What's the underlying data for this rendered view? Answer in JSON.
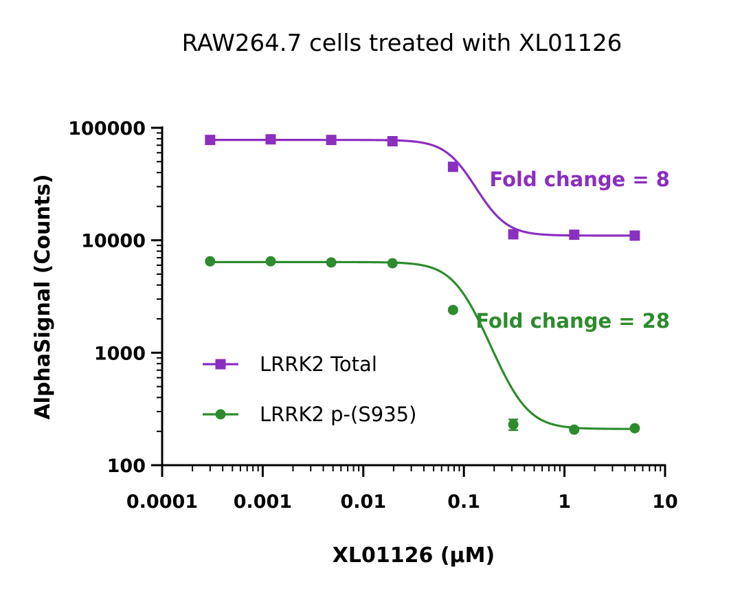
{
  "chart_data": {
    "type": "scatter",
    "title": "RAW264.7 cells treated with XL01126",
    "xlabel": "XL01126 (µM)",
    "ylabel": "AlphaSignal (Counts)",
    "xscale": "log",
    "yscale": "log",
    "xlim": [
      0.0001,
      10
    ],
    "ylim": [
      100,
      100000
    ],
    "xticks": [
      0.0001,
      0.001,
      0.01,
      0.1,
      1,
      10
    ],
    "xtick_labels": [
      "0.0001",
      "0.001",
      "0.01",
      "0.1",
      "1",
      "10"
    ],
    "yticks": [
      100,
      1000,
      10000,
      100000
    ],
    "ytick_labels": [
      "100",
      "1000",
      "10000",
      "100000"
    ],
    "legend_position": "bottom-left",
    "series": [
      {
        "name": "LRRK2 Total",
        "marker": "square",
        "color": "#8a2fbf",
        "x": [
          0.0003,
          0.0012,
          0.0048,
          0.0195,
          0.078,
          0.31,
          1.25,
          5.0
        ],
        "y": [
          78000,
          79000,
          78000,
          76000,
          45000,
          11300,
          11200,
          11000
        ],
        "fit": {
          "top": 78000,
          "bottom": 11000,
          "ec50": 0.095,
          "hill": 3.0
        },
        "annotation": "Fold change = 8"
      },
      {
        "name": "LRRK2 p-(S935)",
        "marker": "circle",
        "color": "#2e8b2e",
        "x": [
          0.0003,
          0.0012,
          0.0048,
          0.0195,
          0.078,
          0.31,
          1.25,
          5.0
        ],
        "y": [
          6500,
          6500,
          6350,
          6250,
          2400,
          230,
          207,
          213
        ],
        "yerr": [
          0,
          0,
          0,
          0,
          0,
          25,
          0,
          0
        ],
        "fit": {
          "top": 6400,
          "bottom": 210,
          "ec50": 0.1,
          "hill": 2.8
        },
        "annotation": "Fold change = 28"
      }
    ]
  }
}
